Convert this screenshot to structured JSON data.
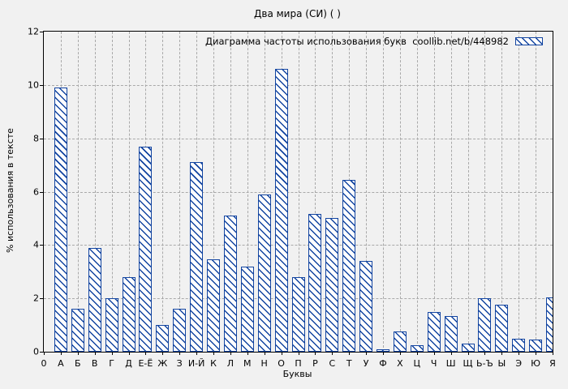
{
  "chart_data": {
    "type": "bar",
    "title": "Два мира (СИ) ( )",
    "xlabel": "Буквы",
    "ylabel": "% использования в тексте",
    "legend_label": "Диаграмма частоты использования букв  coollib.net/b/448982",
    "legend_position": "top-right-inside",
    "grid": true,
    "ylim": [
      0,
      12
    ],
    "ytick_step": 2,
    "origin_tick_label": "0",
    "categories": [
      "А",
      "Б",
      "В",
      "Г",
      "Д",
      "Е-Ё",
      "Ж",
      "З",
      "И-Й",
      "К",
      "Л",
      "М",
      "Н",
      "О",
      "П",
      "Р",
      "С",
      "Т",
      "У",
      "Ф",
      "Х",
      "Ц",
      "Ч",
      "Ш",
      "Щ",
      "Ь-Ъ",
      "Ы",
      "Э",
      "Ю",
      "Я"
    ],
    "values": [
      9.9,
      1.6,
      3.9,
      2.0,
      2.8,
      7.7,
      1.0,
      1.6,
      7.1,
      3.45,
      5.1,
      3.2,
      5.9,
      10.6,
      2.8,
      5.15,
      5.0,
      6.45,
      3.4,
      0.1,
      0.75,
      0.25,
      1.5,
      1.35,
      0.3,
      2.0,
      1.75,
      0.5,
      0.45,
      2.05
    ],
    "colors": {
      "bar_border": "#1244a0",
      "bar_hatch": "#1244a0",
      "bar_fill": "#ffffff",
      "grid_line": "#a9a9a9",
      "axis": "#000000",
      "text": "#000000",
      "background": "#f1f1f1"
    }
  }
}
